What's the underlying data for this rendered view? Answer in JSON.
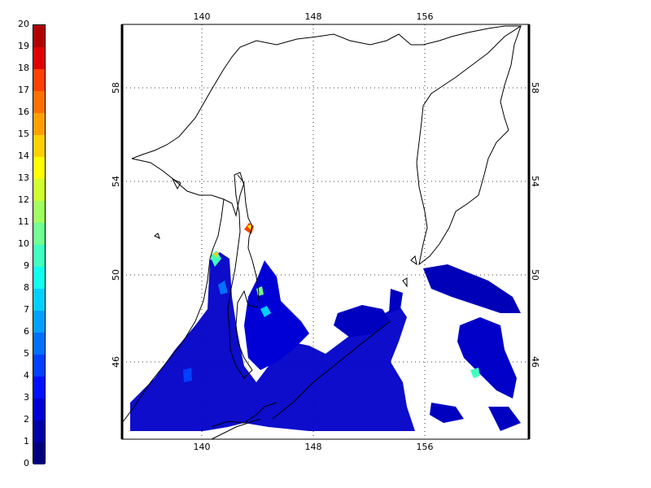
{
  "colorbar": {
    "labels": [
      "0",
      "1",
      "2",
      "3",
      "4",
      "5",
      "6",
      "7",
      "8",
      "9",
      "10",
      "11",
      "12",
      "13",
      "14",
      "15",
      "16",
      "17",
      "18",
      "19",
      "20"
    ],
    "colors": [
      "#00007f",
      "#0000a8",
      "#0000d6",
      "#0010ff",
      "#0040ff",
      "#0070ff",
      "#00a0ff",
      "#00d0ff",
      "#10fff0",
      "#40ffc0",
      "#70ff90",
      "#a0ff60",
      "#d0ff30",
      "#ffff00",
      "#ffd000",
      "#ffa000",
      "#ff7000",
      "#ff4000",
      "#e00000",
      "#b00000"
    ]
  },
  "map": {
    "lon_ticks": [
      "140",
      "148",
      "156"
    ],
    "lat_ticks": [
      "46",
      "50",
      "54",
      "58"
    ],
    "water_color": "#0000d6",
    "grid": true
  }
}
